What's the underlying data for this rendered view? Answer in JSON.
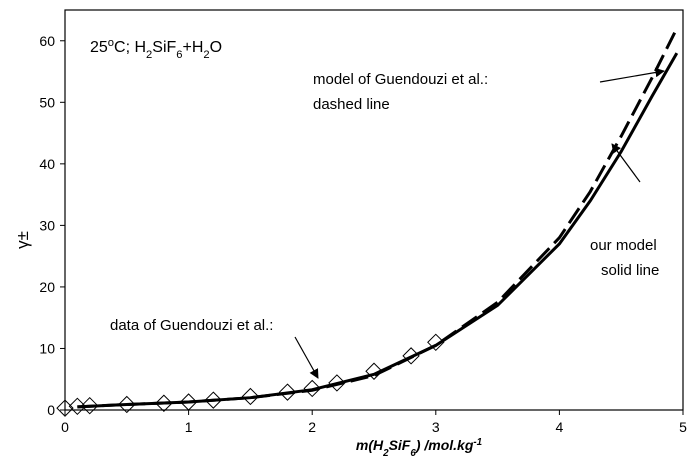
{
  "chart_data": {
    "type": "line",
    "title": [
      {
        "text": "25"
      },
      {
        "text": "o",
        "script": "super"
      },
      {
        "text": "C; H"
      },
      {
        "text": "2",
        "script": "sub"
      },
      {
        "text": "SiF"
      },
      {
        "text": "6",
        "script": "sub"
      },
      {
        "text": "+H"
      },
      {
        "text": "2",
        "script": "sub"
      },
      {
        "text": "O"
      }
    ],
    "x_label": [
      {
        "text": "m(H"
      },
      {
        "text": "2",
        "script": "sub"
      },
      {
        "text": "SiF"
      },
      {
        "text": "6",
        "script": "sub"
      },
      {
        "text": ") /mol.kg"
      },
      {
        "text": "-1",
        "script": "super"
      }
    ],
    "y_label": "γ±",
    "annotations": [
      "model of Guendouzi et al.:",
      "dashed line",
      "our model",
      "solid line",
      "data of Guendouzi et al.:"
    ],
    "xlim": [
      0,
      5
    ],
    "ylim": [
      0,
      65
    ],
    "xticks": [
      0,
      1,
      2,
      3,
      4,
      5
    ],
    "yticks": [
      0,
      10,
      20,
      30,
      40,
      50,
      60
    ],
    "series": [
      {
        "style": "marker",
        "color": "#000000",
        "x": [
          0,
          0.1,
          0.2,
          0.5,
          0.8,
          1.0,
          1.2,
          1.5,
          1.8,
          2.0,
          2.2,
          2.5,
          2.8,
          3.0
        ],
        "values": [
          0.3,
          0.6,
          0.7,
          0.9,
          1.1,
          1.3,
          1.6,
          2.2,
          2.9,
          3.5,
          4.4,
          6.3,
          8.8,
          11.0
        ]
      },
      {
        "style": "solid",
        "color": "#000000",
        "x": [
          0.1,
          0.5,
          1,
          1.5,
          2,
          2.5,
          3,
          3.5,
          4,
          4.25,
          4.5,
          4.75,
          4.95
        ],
        "values": [
          0.5,
          0.9,
          1.3,
          2.0,
          3.3,
          5.8,
          10.5,
          17,
          27,
          34,
          42,
          51,
          58
        ]
      },
      {
        "style": "dashed",
        "color": "#000000",
        "x": [
          0.1,
          0.5,
          1,
          1.5,
          2,
          2.5,
          3,
          3.5,
          4,
          4.25,
          4.5,
          4.75,
          4.95
        ],
        "values": [
          0.5,
          0.9,
          1.3,
          2.0,
          3.2,
          5.6,
          10.5,
          17.5,
          28,
          35.5,
          44.5,
          54,
          62
        ]
      }
    ]
  }
}
